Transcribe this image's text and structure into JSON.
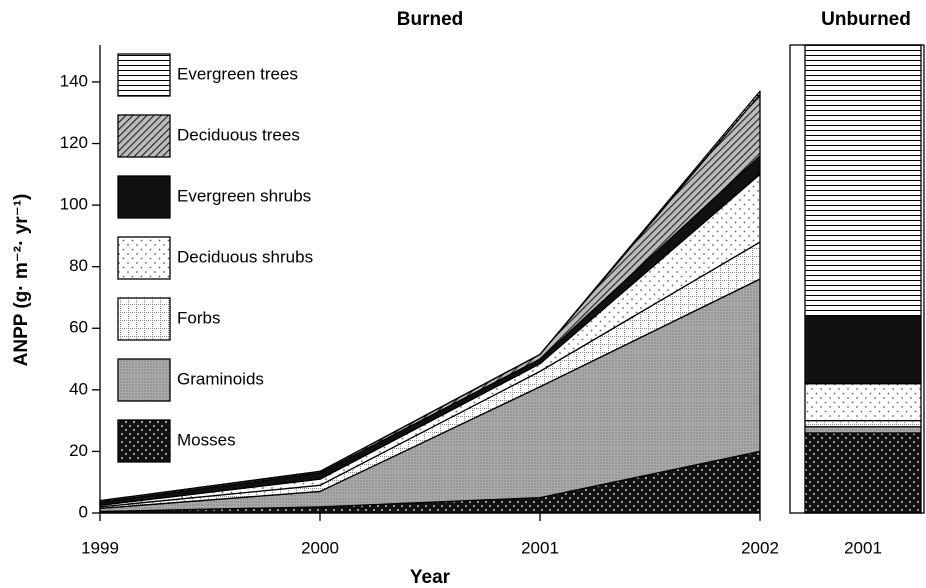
{
  "chart_data": [
    {
      "type": "area",
      "stacked": true,
      "title": "Burned",
      "xlabel": "Year",
      "ylabel": "ANPP (g· m⁻²· yr⁻¹)",
      "x": [
        1999,
        2000,
        2001,
        2002
      ],
      "xlim": [
        1999,
        2002
      ],
      "xticks": [
        1999,
        2000,
        2001,
        2002
      ],
      "ylim": [
        0,
        152
      ],
      "yticks": [
        0,
        20,
        40,
        60,
        80,
        100,
        120,
        140
      ],
      "series": [
        {
          "name": "Mosses",
          "color": "#111111",
          "pattern": "dark-dots",
          "values": [
            0.5,
            2,
            5,
            20
          ]
        },
        {
          "name": "Graminoids",
          "color": "#aaaaaa",
          "pattern": "fine-dots",
          "values": [
            1,
            5,
            36,
            56
          ]
        },
        {
          "name": "Forbs",
          "color": "#ffffff",
          "pattern": "grid",
          "values": [
            0.5,
            2,
            5,
            12
          ]
        },
        {
          "name": "Deciduous shrubs",
          "color": "#ffffff",
          "pattern": "dots",
          "values": [
            0.5,
            2,
            2.5,
            22
          ]
        },
        {
          "name": "Evergreen shrubs",
          "color": "#111111",
          "pattern": "solid",
          "values": [
            1,
            2,
            1.5,
            6
          ]
        },
        {
          "name": "Deciduous trees",
          "color": "#bbbbbb",
          "pattern": "diagonal",
          "values": [
            0.5,
            0.5,
            1.5,
            20
          ]
        },
        {
          "name": "Evergreen trees",
          "color": "#ffffff",
          "pattern": "horizontal-lines",
          "values": [
            0,
            0,
            0,
            1
          ]
        }
      ]
    },
    {
      "type": "bar",
      "stacked": true,
      "title": "Unburned",
      "categories": [
        "2001"
      ],
      "ylim": [
        0,
        152
      ],
      "series": [
        {
          "color": "#111111",
          "pattern": "dark-dots",
          "values": [
            26
          ]
        },
        {
          "color": "#aaaaaa",
          "pattern": "fine-dots",
          "values": [
            2
          ]
        },
        {
          "color": "#ffffff",
          "pattern": "grid",
          "values": [
            2
          ]
        },
        {
          "color": "#ffffff",
          "pattern": "dots",
          "values": [
            12
          ]
        },
        {
          "color": "#111111",
          "pattern": "solid",
          "values": [
            22
          ]
        },
        {
          "color": "#bbbbbb",
          "pattern": "diagonal",
          "values": [
            0
          ]
        },
        {
          "color": "#ffffff",
          "pattern": "horizontal-lines",
          "values": [
            88
          ]
        }
      ]
    }
  ]
}
